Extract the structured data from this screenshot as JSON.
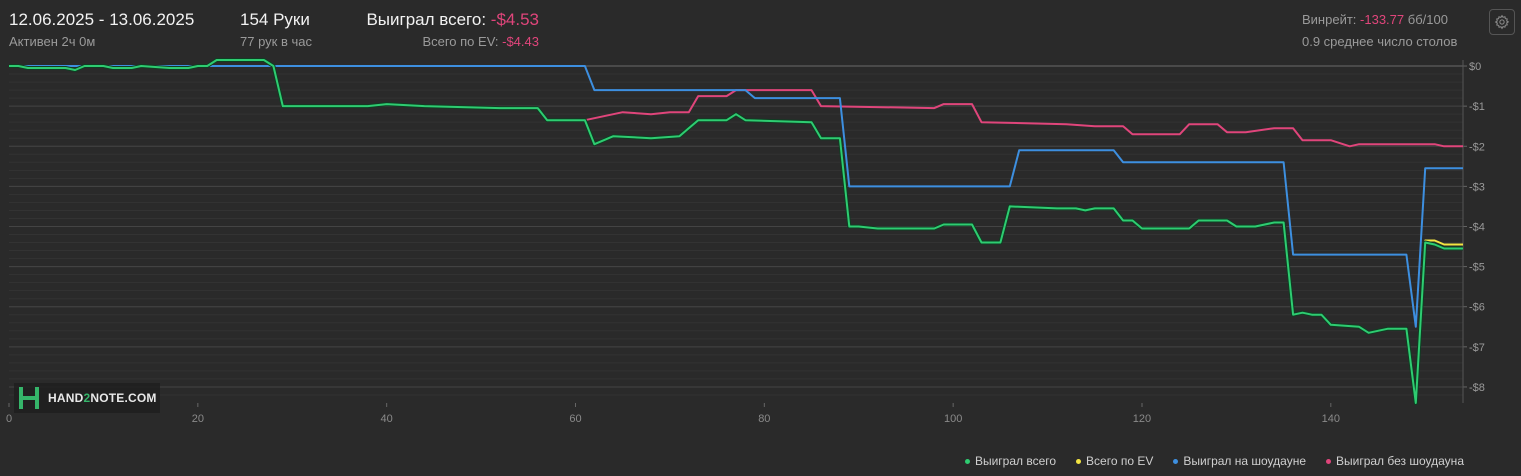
{
  "header": {
    "date_range": "12.06.2025 - 13.06.2025",
    "active_label": "Активен 2ч 0м",
    "hands_label": "154 Руки",
    "hands_per_hour": "77 рук в час",
    "won_total_label": "Выиграл всего:",
    "won_total_value": "-$4.53",
    "ev_total_label": "Всего по EV:",
    "ev_total_value": "-$4.43",
    "winrate_label": "Винрейт:",
    "winrate_value": "-133.77",
    "winrate_suffix": "бб/100",
    "avg_tables": "0.9 среднее число столов"
  },
  "logo": {
    "text": "HAND2NOTE.COM",
    "text_accent": "2"
  },
  "colors": {
    "background": "#2a2a2a",
    "won_total": "#2ecc71",
    "ev_total": "#f4e542",
    "showdown": "#3d8fe0",
    "non_showdown": "#e0457b",
    "negative_text": "#e0457b"
  },
  "chart_data": {
    "type": "line",
    "xlim": [
      0,
      154
    ],
    "ylim": [
      -8.4,
      0.15
    ],
    "x_ticks": [
      0,
      20,
      40,
      60,
      80,
      100,
      120,
      140
    ],
    "y_ticks": [
      0,
      -1,
      -2,
      -3,
      -4,
      -5,
      -6,
      -7,
      -8
    ],
    "y_tick_labels": [
      "$0",
      "-$1",
      "-$2",
      "-$3",
      "-$4",
      "-$5",
      "-$6",
      "-$7",
      "-$8"
    ],
    "grid": true,
    "legend_position": "bottom-right",
    "series": [
      {
        "name": "Выиграл без шоудауна",
        "color": "#e0457b",
        "points": [
          [
            0,
            0
          ],
          [
            21,
            0
          ],
          [
            22,
            0.15
          ],
          [
            27,
            0.15
          ],
          [
            28,
            0
          ],
          [
            29,
            -1
          ],
          [
            38,
            -1
          ],
          [
            40,
            -0.95
          ],
          [
            44,
            -1
          ],
          [
            52,
            -1.05
          ],
          [
            56,
            -1.05
          ],
          [
            57,
            -1.35
          ],
          [
            61,
            -1.35
          ],
          [
            63,
            -1.25
          ],
          [
            65,
            -1.15
          ],
          [
            68,
            -1.2
          ],
          [
            70,
            -1.15
          ],
          [
            72,
            -1.15
          ],
          [
            73,
            -0.75
          ],
          [
            76,
            -0.75
          ],
          [
            77,
            -0.6
          ],
          [
            85,
            -0.6
          ],
          [
            86,
            -1
          ],
          [
            98,
            -1.05
          ],
          [
            99,
            -0.95
          ],
          [
            102,
            -0.95
          ],
          [
            103,
            -1.4
          ],
          [
            112,
            -1.45
          ],
          [
            115,
            -1.5
          ],
          [
            118,
            -1.5
          ],
          [
            119,
            -1.7
          ],
          [
            124,
            -1.7
          ],
          [
            125,
            -1.45
          ],
          [
            128,
            -1.45
          ],
          [
            129,
            -1.65
          ],
          [
            131,
            -1.65
          ],
          [
            134,
            -1.55
          ],
          [
            136,
            -1.55
          ],
          [
            137,
            -1.85
          ],
          [
            140,
            -1.85
          ],
          [
            142,
            -2
          ],
          [
            143,
            -1.95
          ],
          [
            151,
            -1.95
          ],
          [
            152,
            -2
          ],
          [
            154,
            -2
          ]
        ]
      },
      {
        "name": "Выиграл на шоудауне",
        "color": "#3d8fe0",
        "points": [
          [
            0,
            0
          ],
          [
            61,
            0
          ],
          [
            62,
            -0.6
          ],
          [
            78,
            -0.6
          ],
          [
            79,
            -0.8
          ],
          [
            88,
            -0.8
          ],
          [
            89,
            -3
          ],
          [
            106,
            -3
          ],
          [
            107,
            -2.1
          ],
          [
            117,
            -2.1
          ],
          [
            118,
            -2.4
          ],
          [
            135,
            -2.4
          ],
          [
            136,
            -4.7
          ],
          [
            148,
            -4.7
          ],
          [
            149,
            -6.5
          ],
          [
            150,
            -2.55
          ],
          [
            154,
            -2.55
          ]
        ]
      },
      {
        "name": "Всего по EV",
        "color": "#f4e542",
        "points": [
          [
            0,
            0
          ],
          [
            1,
            0
          ],
          [
            2,
            -0.05
          ],
          [
            6,
            -0.05
          ],
          [
            7,
            -0.1
          ],
          [
            8,
            0
          ],
          [
            10,
            0
          ],
          [
            11,
            -0.05
          ],
          [
            13,
            -0.05
          ],
          [
            14,
            0
          ],
          [
            17,
            -0.05
          ],
          [
            19,
            -0.05
          ],
          [
            20,
            0
          ],
          [
            21,
            0
          ],
          [
            22,
            0.15
          ],
          [
            27,
            0.15
          ],
          [
            28,
            0
          ],
          [
            29,
            -1
          ],
          [
            38,
            -1
          ],
          [
            40,
            -0.95
          ],
          [
            44,
            -1
          ],
          [
            52,
            -1.05
          ],
          [
            56,
            -1.05
          ],
          [
            57,
            -1.35
          ],
          [
            61,
            -1.35
          ],
          [
            62,
            -1.95
          ],
          [
            64,
            -1.75
          ],
          [
            68,
            -1.8
          ],
          [
            71,
            -1.75
          ],
          [
            73,
            -1.35
          ],
          [
            76,
            -1.35
          ],
          [
            77,
            -1.2
          ],
          [
            78,
            -1.35
          ],
          [
            85,
            -1.4
          ],
          [
            86,
            -1.8
          ],
          [
            88,
            -1.8
          ],
          [
            89,
            -4
          ],
          [
            90,
            -4
          ],
          [
            92,
            -4.05
          ],
          [
            98,
            -4.05
          ],
          [
            99,
            -3.95
          ],
          [
            102,
            -3.95
          ],
          [
            103,
            -4.4
          ],
          [
            105,
            -4.4
          ],
          [
            106,
            -3.5
          ],
          [
            111,
            -3.55
          ],
          [
            113,
            -3.55
          ],
          [
            114,
            -3.6
          ],
          [
            115,
            -3.55
          ],
          [
            117,
            -3.55
          ],
          [
            118,
            -3.85
          ],
          [
            119,
            -3.85
          ],
          [
            120,
            -4.05
          ],
          [
            125,
            -4.05
          ],
          [
            126,
            -3.85
          ],
          [
            129,
            -3.85
          ],
          [
            130,
            -4
          ],
          [
            132,
            -4
          ],
          [
            134,
            -3.9
          ],
          [
            135,
            -3.9
          ],
          [
            136,
            -6.2
          ],
          [
            137,
            -6.15
          ],
          [
            138,
            -6.2
          ],
          [
            139,
            -6.2
          ],
          [
            140,
            -6.45
          ],
          [
            143,
            -6.5
          ],
          [
            144,
            -6.65
          ],
          [
            145,
            -6.6
          ],
          [
            146,
            -6.55
          ],
          [
            148,
            -6.55
          ],
          [
            149,
            -8.4
          ],
          [
            150,
            -4.35
          ],
          [
            151,
            -4.35
          ],
          [
            152,
            -4.45
          ],
          [
            154,
            -4.45
          ]
        ]
      },
      {
        "name": "Выиграл всего",
        "color": "#2ecc71",
        "points": [
          [
            0,
            0
          ],
          [
            1,
            0
          ],
          [
            2,
            -0.05
          ],
          [
            6,
            -0.05
          ],
          [
            7,
            -0.1
          ],
          [
            8,
            0
          ],
          [
            10,
            0
          ],
          [
            11,
            -0.05
          ],
          [
            13,
            -0.05
          ],
          [
            14,
            0
          ],
          [
            17,
            -0.05
          ],
          [
            19,
            -0.05
          ],
          [
            20,
            0
          ],
          [
            21,
            0
          ],
          [
            22,
            0.15
          ],
          [
            27,
            0.15
          ],
          [
            28,
            0
          ],
          [
            29,
            -1
          ],
          [
            38,
            -1
          ],
          [
            40,
            -0.95
          ],
          [
            44,
            -1
          ],
          [
            52,
            -1.05
          ],
          [
            56,
            -1.05
          ],
          [
            57,
            -1.35
          ],
          [
            61,
            -1.35
          ],
          [
            62,
            -1.95
          ],
          [
            64,
            -1.75
          ],
          [
            68,
            -1.8
          ],
          [
            71,
            -1.75
          ],
          [
            73,
            -1.35
          ],
          [
            76,
            -1.35
          ],
          [
            77,
            -1.2
          ],
          [
            78,
            -1.35
          ],
          [
            85,
            -1.4
          ],
          [
            86,
            -1.8
          ],
          [
            88,
            -1.8
          ],
          [
            89,
            -4
          ],
          [
            90,
            -4
          ],
          [
            92,
            -4.05
          ],
          [
            98,
            -4.05
          ],
          [
            99,
            -3.95
          ],
          [
            102,
            -3.95
          ],
          [
            103,
            -4.4
          ],
          [
            105,
            -4.4
          ],
          [
            106,
            -3.5
          ],
          [
            111,
            -3.55
          ],
          [
            113,
            -3.55
          ],
          [
            114,
            -3.6
          ],
          [
            115,
            -3.55
          ],
          [
            117,
            -3.55
          ],
          [
            118,
            -3.85
          ],
          [
            119,
            -3.85
          ],
          [
            120,
            -4.05
          ],
          [
            125,
            -4.05
          ],
          [
            126,
            -3.85
          ],
          [
            129,
            -3.85
          ],
          [
            130,
            -4
          ],
          [
            132,
            -4
          ],
          [
            134,
            -3.9
          ],
          [
            135,
            -3.9
          ],
          [
            136,
            -6.2
          ],
          [
            137,
            -6.15
          ],
          [
            138,
            -6.2
          ],
          [
            139,
            -6.2
          ],
          [
            140,
            -6.45
          ],
          [
            143,
            -6.5
          ],
          [
            144,
            -6.65
          ],
          [
            145,
            -6.6
          ],
          [
            146,
            -6.55
          ],
          [
            148,
            -6.55
          ],
          [
            149,
            -8.4
          ],
          [
            150,
            -4.4
          ],
          [
            151,
            -4.45
          ],
          [
            152,
            -4.55
          ],
          [
            154,
            -4.55
          ]
        ]
      }
    ],
    "legend": [
      "Выиграл всего",
      "Всего по EV",
      "Выиграл на шоудауне",
      "Выиграл без шоудауна"
    ]
  }
}
